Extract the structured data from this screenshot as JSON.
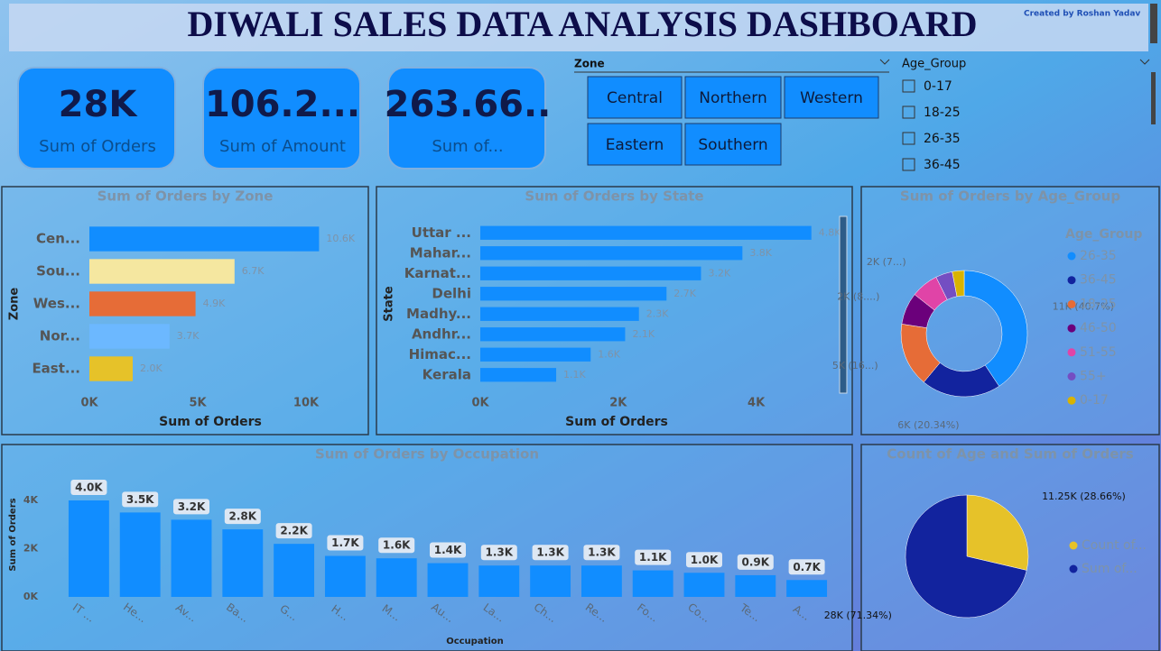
{
  "header": {
    "title": "DIWALI SALES DATA ANALYSIS DASHBOARD",
    "credit": "Created by Roshan Yadav"
  },
  "cards": [
    {
      "value": "28K",
      "label": "Sum of Orders"
    },
    {
      "value": "106.2...",
      "label": "Sum of Amount"
    },
    {
      "value": "263.66..",
      "label": "Sum of..."
    }
  ],
  "zone_slicer": {
    "title": "Zone",
    "options": [
      "Central",
      "Northern",
      "Western",
      "Eastern",
      "Southern"
    ]
  },
  "age_slicer": {
    "title": "Age_Group",
    "options": [
      "0-17",
      "18-25",
      "26-35",
      "36-45"
    ]
  },
  "chart_data": [
    {
      "type": "hbar",
      "title": "Sum of Orders by Zone",
      "categories": [
        "Cen...",
        "Sou...",
        "Wes...",
        "Nor...",
        "East..."
      ],
      "values": [
        10600,
        6700,
        4900,
        3700,
        2000
      ],
      "value_labels": [
        "10.6K",
        "6.7K",
        "4.9K",
        "3.7K",
        "2.0K"
      ],
      "colors": [
        "#118dff",
        "#f5e7a0",
        "#e66c37",
        "#6cb8ff",
        "#e6c229"
      ],
      "xlim": [
        0,
        12000
      ],
      "xticks": [
        {
          "value": 0,
          "label": "0K"
        },
        {
          "value": 5000,
          "label": "5K"
        },
        {
          "value": 10000,
          "label": "10K"
        }
      ],
      "xlabel": "Sum of Orders",
      "ylabel": "Zone"
    },
    {
      "type": "hbar",
      "title": "Sum of Orders by State",
      "categories": [
        "Uttar ...",
        "Mahar...",
        "Karnat...",
        "Delhi",
        "Madhy...",
        "Andhr...",
        "Himac...",
        "Kerala"
      ],
      "values": [
        4800,
        3800,
        3200,
        2700,
        2300,
        2100,
        1600,
        1100
      ],
      "value_labels": [
        "4.8K",
        "3.8K",
        "3.2K",
        "2.7K",
        "2.3K",
        "2.1K",
        "1.6K",
        "1.1K"
      ],
      "color": "#118dff",
      "xlim": [
        0,
        5000
      ],
      "xticks": [
        {
          "value": 0,
          "label": "0K"
        },
        {
          "value": 2000,
          "label": "2K"
        },
        {
          "value": 4000,
          "label": "4K"
        }
      ],
      "xlabel": "Sum of Orders",
      "ylabel": "State"
    },
    {
      "type": "donut",
      "title": "Sum of Orders by Age_Group",
      "legend_title": "Age_Group",
      "categories": [
        "26-35",
        "36-45",
        "18-25",
        "46-50",
        "51-55",
        "55+",
        "0-17"
      ],
      "values": [
        11360,
        5680,
        4580,
        2290,
        1960,
        1200,
        850
      ],
      "value_labels": [
        "11K (40.7%)",
        "6K (20.34%)",
        "5K (16...)",
        "2K (8....)",
        "2K (7...)",
        null,
        null
      ],
      "colors": [
        "#118dff",
        "#12239e",
        "#e66c37",
        "#6b007b",
        "#e044a7",
        "#744ec2",
        "#d9b300"
      ]
    },
    {
      "type": "column",
      "title": "Sum of Orders by Occupation",
      "categories": [
        "IT ...",
        "He...",
        "Av...",
        "Ba...",
        "G...",
        "H...",
        "M...",
        "Au...",
        "La...",
        "Ch...",
        "Re...",
        "Fo...",
        "Co...",
        "Te...",
        "A..."
      ],
      "values": [
        4000,
        3500,
        3200,
        2800,
        2200,
        1700,
        1600,
        1400,
        1300,
        1300,
        1300,
        1100,
        1000,
        900,
        700
      ],
      "value_labels": [
        "4.0K",
        "3.5K",
        "3.2K",
        "2.8K",
        "2.2K",
        "1.7K",
        "1.6K",
        "1.4K",
        "1.3K",
        "1.3K",
        "1.3K",
        "1.1K",
        "1.0K",
        "0.9K",
        "0.7K"
      ],
      "color": "#118dff",
      "ylim": [
        0,
        4000
      ],
      "yticks": [
        {
          "value": 0,
          "label": "0K"
        },
        {
          "value": 2000,
          "label": "2K"
        },
        {
          "value": 4000,
          "label": "4K"
        }
      ],
      "xlabel": "Occupation",
      "ylabel": "Sum of Orders"
    },
    {
      "type": "pie",
      "title": "Count of Age and Sum of Orders",
      "categories": [
        "Count of...",
        "Sum of..."
      ],
      "values": [
        11250,
        28000
      ],
      "value_labels": [
        "11.25K (28.66%)",
        "28K (71.34%)"
      ],
      "colors": [
        "#e6c229",
        "#12239e"
      ]
    }
  ]
}
